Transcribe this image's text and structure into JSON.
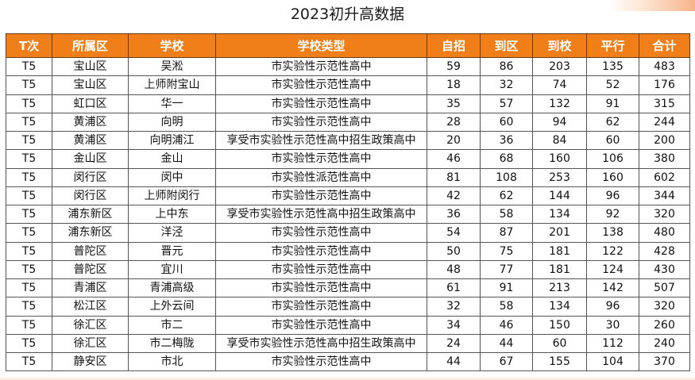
{
  "title": "2023初升高数据",
  "columns": [
    "T次",
    "所属区",
    "学校",
    "学校类型",
    "自招",
    "到区",
    "到校",
    "平行",
    "合计"
  ],
  "rows": [
    [
      "T5",
      "宝山区",
      "吴淞",
      "市实验性示范性高中",
      "59",
      "86",
      "203",
      "135",
      "483"
    ],
    [
      "T5",
      "宝山区",
      "上师附宝山",
      "市实验性示范性高中",
      "18",
      "32",
      "74",
      "52",
      "176"
    ],
    [
      "T5",
      "虹口区",
      "华一",
      "市实验性示范性高中",
      "35",
      "57",
      "132",
      "91",
      "315"
    ],
    [
      "T5",
      "黄浦区",
      "向明",
      "市实验性示范性高中",
      "28",
      "60",
      "94",
      "62",
      "244"
    ],
    [
      "T5",
      "黄浦区",
      "向明浦江",
      "享受市实验性示范性高中招生政策高中",
      "20",
      "36",
      "84",
      "60",
      "200"
    ],
    [
      "T5",
      "金山区",
      "金山",
      "市实验性示范性高中",
      "46",
      "68",
      "160",
      "106",
      "380"
    ],
    [
      "T5",
      "闵行区",
      "闵中",
      "市实验性派范性高中",
      "81",
      "108",
      "253",
      "160",
      "602"
    ],
    [
      "T5",
      "闵行区",
      "上师附闵行",
      "市实验性示范性高中",
      "42",
      "62",
      "144",
      "96",
      "344"
    ],
    [
      "T5",
      "浦东新区",
      "上中东",
      "享受市实验性示范性高中招生政策高中",
      "36",
      "58",
      "134",
      "92",
      "320"
    ],
    [
      "T5",
      "浦东新区",
      "洋泾",
      "市实验性示范性高中",
      "54",
      "87",
      "201",
      "138",
      "480"
    ],
    [
      "T5",
      "普陀区",
      "晋元",
      "市实验性示范性高中",
      "50",
      "75",
      "181",
      "122",
      "428"
    ],
    [
      "T5",
      "普陀区",
      "宜川",
      "市实验性示范性高中",
      "48",
      "77",
      "181",
      "124",
      "430"
    ],
    [
      "T5",
      "青浦区",
      "青浦高级",
      "市实验性示范性高中",
      "61",
      "91",
      "213",
      "142",
      "507"
    ],
    [
      "T5",
      "松江区",
      "上外云间",
      "市实验性示范性高中",
      "32",
      "58",
      "134",
      "96",
      "320"
    ],
    [
      "T5",
      "徐汇区",
      "市二",
      "市实验性示范性高中",
      "34",
      "46",
      "150",
      "30",
      "260"
    ],
    [
      "T5",
      "徐汇区",
      "市二梅陇",
      "享受市实验性示范性高中招生政策高中",
      "24",
      "44",
      "60",
      "112",
      "240"
    ],
    [
      "T5",
      "静安区",
      "市北",
      "市实验性示范性高中",
      "44",
      "67",
      "155",
      "104",
      "370"
    ]
  ],
  "colors": {
    "header_bg": "#f07f1a",
    "header_text": "#ffffff",
    "border": "#555555"
  }
}
